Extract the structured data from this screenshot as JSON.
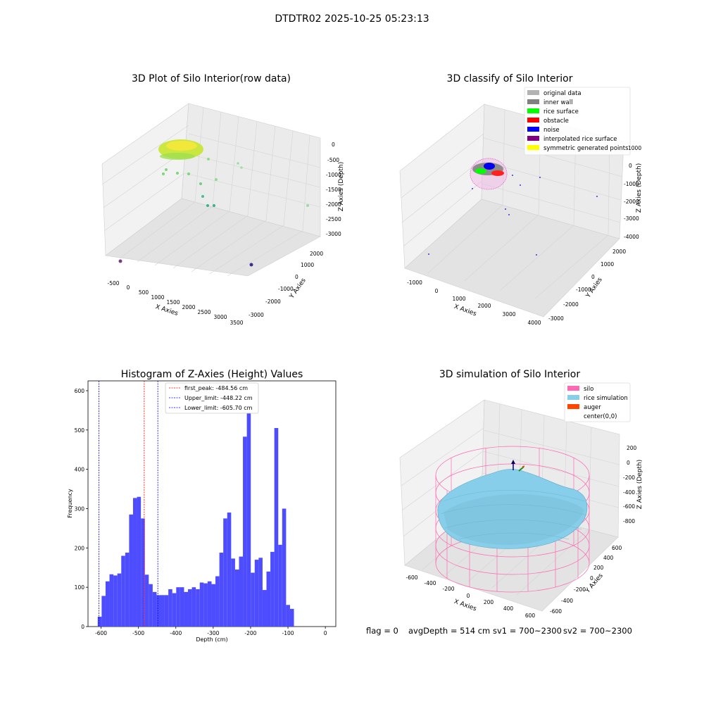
{
  "figure": {
    "suptitle": "DTDTR02 2025-10-25 05:23:13",
    "status": {
      "flag": "flag = 0",
      "avg_depth": "avgDepth = 514 cm",
      "sv1": "sv1 = 700~2300",
      "sv2": "sv2 = 700~2300"
    }
  },
  "panels": {
    "raw": {
      "title": "3D Plot of Silo Interior(row data)",
      "xlabel": "X Axies",
      "ylabel": "Y Axies",
      "zlabel": "Z Axies (Depth)",
      "xticks": [
        "-500",
        "0",
        "500",
        "1000",
        "1500",
        "2000",
        "2500",
        "3000",
        "3500"
      ],
      "yticks": [
        "-3000",
        "-2000",
        "-1000",
        "0",
        "1000",
        "2000"
      ],
      "zticks": [
        "0",
        "-500",
        "-1000",
        "-1500",
        "-2000",
        "-2500",
        "-3000"
      ]
    },
    "classify": {
      "title": "3D classify of Silo Interior",
      "xlabel": "X Axies",
      "ylabel": "Y Axies",
      "zlabel": "Z Axies (Depth)",
      "xticks": [
        "-1000",
        "0",
        "1000",
        "2000",
        "3000",
        "4000"
      ],
      "yticks": [
        "-3000",
        "-2000",
        "-1000",
        "0",
        "1000",
        "2000"
      ],
      "zticks": [
        "1000",
        "0",
        "-1000",
        "-2000",
        "-3000",
        "-4000"
      ],
      "legend": [
        {
          "label": "original data",
          "color": "#b3b3b3"
        },
        {
          "label": "inner wall",
          "color": "#808080"
        },
        {
          "label": "rice surface",
          "color": "#00ff00"
        },
        {
          "label": "obstacle",
          "color": "#ff0000"
        },
        {
          "label": "noise",
          "color": "#0000ff"
        },
        {
          "label": "interpolated rice surface",
          "color": "#800080"
        },
        {
          "label": "symmetric generated points",
          "color": "#ffff00"
        }
      ]
    },
    "simulation": {
      "title": "3D simulation of Silo Interior",
      "xlabel": "X Axies",
      "ylabel": "Y Axies",
      "zlabel": "Z Axies (Depth)",
      "xticks": [
        "-600",
        "-400",
        "-200",
        "0",
        "200",
        "400",
        "600"
      ],
      "yticks": [
        "-600",
        "-400",
        "-200",
        "0",
        "200",
        "400",
        "600"
      ],
      "zticks": [
        "200",
        "0",
        "-200",
        "-400",
        "-600",
        "-800"
      ],
      "legend": [
        {
          "label": "silo",
          "color": "#ff69b4"
        },
        {
          "label": "rice simulation",
          "color": "#87ceeb"
        },
        {
          "label": "auger",
          "color": "#ff4500"
        },
        {
          "label": "center(0,0)",
          "color": "#ffffff"
        }
      ]
    }
  },
  "chart_data": {
    "type": "bar",
    "title": "Histogram of Z-Axies (Height) Values",
    "xlabel": "Depth (cm)",
    "ylabel": "Frequency",
    "xlim": [
      -635,
      28
    ],
    "ylim": [
      0,
      625
    ],
    "xticks": [
      -600,
      -500,
      -400,
      -300,
      -200,
      -100,
      0
    ],
    "yticks": [
      0,
      100,
      200,
      300,
      400,
      500,
      600
    ],
    "bar_color": "#4d4dff",
    "bin_start": -609,
    "bin_width": 10.5,
    "values": [
      25,
      78,
      115,
      133,
      130,
      135,
      180,
      188,
      285,
      327,
      330,
      275,
      132,
      108,
      88,
      80,
      80,
      80,
      95,
      85,
      100,
      100,
      88,
      95,
      100,
      95,
      112,
      110,
      115,
      108,
      128,
      188,
      275,
      290,
      173,
      145,
      178,
      483,
      593,
      137,
      170,
      175,
      93,
      140,
      190,
      505,
      208,
      300,
      55,
      45
    ],
    "vlines": [
      {
        "label": "first_peak: -484.56 cm",
        "x": -484.56,
        "color": "#ff0000"
      },
      {
        "label": "Upper_limit: -448.22 cm",
        "x": -448.22,
        "color": "#0000ff"
      },
      {
        "label": "Lower_limit: -605.70 cm",
        "x": -605.7,
        "color": "#0000ff"
      }
    ]
  }
}
